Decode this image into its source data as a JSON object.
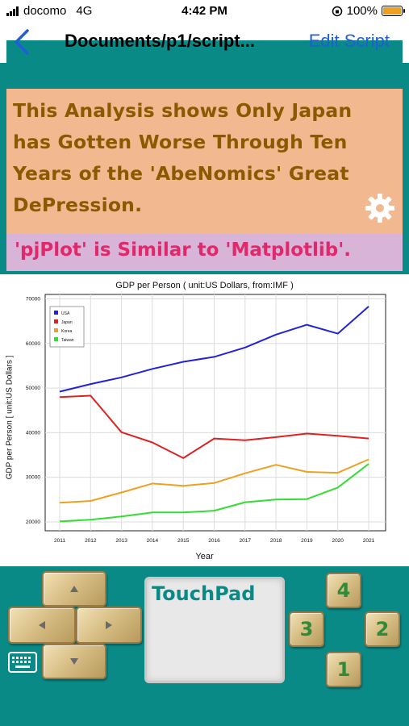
{
  "status_bar": {
    "carrier": "docomo",
    "network": "4G",
    "time": "4:42 PM",
    "battery": "100%"
  },
  "nav": {
    "title": "Documents/p1/script...",
    "action": "Edit Script"
  },
  "headline": "This Analysis shows Only Japan has Gotten Worse Through Ten Years of the 'AbeNomics' Great DePression.",
  "subtitle": "'pjPlot' is Similar to 'Matplotlib'.",
  "touchpad": {
    "label": "TouchPad"
  },
  "keypad": {
    "top": "4",
    "left": "3",
    "right": "2",
    "bottom": "1"
  },
  "colors": {
    "teal": "#0a8a86",
    "headline_bg": "#f2b88f",
    "subtitle_bg": "#d8b4d8"
  },
  "chart_data": {
    "type": "line",
    "title": "GDP per Person ( unit:US Dollars, from:IMF )",
    "xlabel": "Year",
    "ylabel": "GDP per Person [ unit:US Dollars ]",
    "x": [
      "2011",
      "2012",
      "2013",
      "2014",
      "2015",
      "2016",
      "2017",
      "2018",
      "2019",
      "2020",
      "2021"
    ],
    "yticks": [
      20000,
      30000,
      40000,
      50000,
      60000,
      70000
    ],
    "ylim": [
      18000,
      71000
    ],
    "grid": true,
    "legend": "top-left",
    "series": [
      {
        "name": "USA",
        "color": "#2222dd",
        "values": [
          49200,
          50900,
          52400,
          54300,
          55900,
          57000,
          59100,
          62000,
          64200,
          62200,
          68300
        ]
      },
      {
        "name": "Japan",
        "color": "#dd2222",
        "values": [
          48000,
          48300,
          40100,
          37800,
          34300,
          38700,
          38300,
          39000,
          39800,
          39300,
          38700
        ]
      },
      {
        "name": "Korea",
        "color": "#f0a020",
        "values": [
          24300,
          24700,
          26600,
          28600,
          28100,
          28700,
          30900,
          32800,
          31200,
          31000,
          34000
        ]
      },
      {
        "name": "Taiwan",
        "color": "#33dd33",
        "values": [
          20100,
          20500,
          21200,
          22100,
          22100,
          22500,
          24400,
          25000,
          25100,
          27700,
          33000
        ]
      }
    ]
  }
}
